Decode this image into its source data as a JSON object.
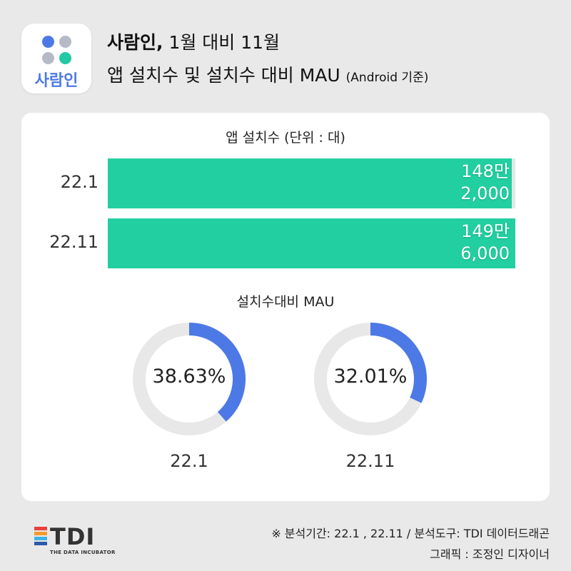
{
  "app": {
    "logo_text": "사람인",
    "name": "사람인,"
  },
  "header": {
    "title_period": " 1월 대비 11월",
    "subtitle": "앱 설치수 및 설치수 대비 MAU",
    "subtitle_note": "(Android 기준)"
  },
  "chart_data": [
    {
      "type": "bar",
      "title": "앱 설치수 (단위 : 대)",
      "orientation": "horizontal",
      "categories": [
        "22.1",
        "22.11"
      ],
      "values": [
        1482000,
        1496000
      ],
      "value_labels": [
        "148만\n2,000",
        "149만\n6,000"
      ],
      "xlim": [
        0,
        1496000
      ],
      "colors": {
        "bar": "#22cfa1",
        "track": "#e6e6e6"
      }
    },
    {
      "type": "pie",
      "subtype": "donut",
      "title": "설치수대비 MAU",
      "categories": [
        "22.1",
        "22.11"
      ],
      "values": [
        38.63,
        32.01
      ],
      "value_labels": [
        "38.63%",
        "32.01%"
      ],
      "colors": {
        "value": "#4d79e6",
        "track": "#e8e8e8"
      }
    }
  ],
  "footer": {
    "brand": "TDI",
    "brand_sub": "THE DATA INCUBATOR",
    "brand_colors": [
      "#e8413c",
      "#f29a2e",
      "#3fb4e5",
      "#2a5caa"
    ],
    "source_line": "※ 분석기간: 22.1 , 22.11 / 분석도구: TDI 데이터드래곤",
    "credit_line": "그래픽 : 조정인 디자이너"
  }
}
